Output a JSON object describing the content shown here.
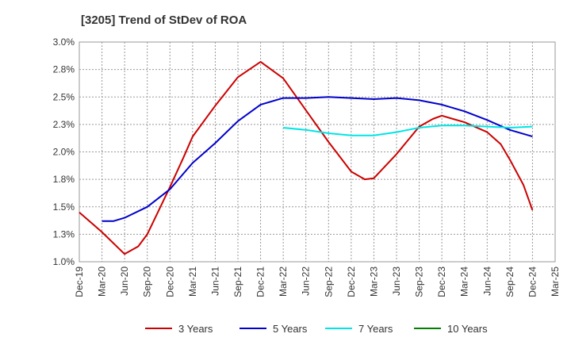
{
  "chart_data": {
    "type": "line",
    "title": "[3205]  Trend of StDev of ROA",
    "xlabel": "",
    "ylabel": "",
    "ylim": [
      1.0,
      3.0
    ],
    "y_ticks": [
      "1.0%",
      "1.3%",
      "1.5%",
      "1.8%",
      "2.0%",
      "2.3%",
      "2.5%",
      "2.8%",
      "3.0%"
    ],
    "y_tick_values": [
      1.0,
      1.25,
      1.5,
      1.75,
      2.0,
      2.25,
      2.5,
      2.75,
      3.0
    ],
    "x_ticks": [
      "Dec-19",
      "Mar-20",
      "Jun-20",
      "Sep-20",
      "Dec-20",
      "Mar-21",
      "Jun-21",
      "Sep-21",
      "Dec-21",
      "Mar-22",
      "Jun-22",
      "Sep-22",
      "Dec-22",
      "Mar-23",
      "Jun-23",
      "Sep-23",
      "Dec-23",
      "Mar-24",
      "Jun-24",
      "Sep-24",
      "Dec-24",
      "Mar-25"
    ],
    "grid": true,
    "legend_position": "bottom",
    "series": [
      {
        "name": "3 Years",
        "color": "#cc0000",
        "points": [
          [
            0,
            1.45
          ],
          [
            1,
            1.27
          ],
          [
            2,
            1.07
          ],
          [
            2.6,
            1.14
          ],
          [
            3,
            1.25
          ],
          [
            4,
            1.68
          ],
          [
            4.6,
            1.95
          ],
          [
            5,
            2.14
          ],
          [
            6,
            2.42
          ],
          [
            7,
            2.68
          ],
          [
            8,
            2.82
          ],
          [
            9,
            2.67
          ],
          [
            10,
            2.38
          ],
          [
            11,
            2.09
          ],
          [
            12,
            1.82
          ],
          [
            12.6,
            1.75
          ],
          [
            13,
            1.76
          ],
          [
            14,
            1.98
          ],
          [
            15,
            2.23
          ],
          [
            15.6,
            2.3
          ],
          [
            16,
            2.33
          ],
          [
            16.5,
            2.3
          ],
          [
            17,
            2.27
          ],
          [
            18,
            2.18
          ],
          [
            18.6,
            2.07
          ],
          [
            19,
            1.93
          ],
          [
            19.6,
            1.7
          ],
          [
            20,
            1.47
          ]
        ]
      },
      {
        "name": "5 Years",
        "color": "#0000cc",
        "points": [
          [
            1,
            1.37
          ],
          [
            1.5,
            1.37
          ],
          [
            2,
            1.4
          ],
          [
            3,
            1.5
          ],
          [
            4,
            1.66
          ],
          [
            5,
            1.9
          ],
          [
            6,
            2.08
          ],
          [
            7,
            2.28
          ],
          [
            8,
            2.43
          ],
          [
            9,
            2.49
          ],
          [
            10,
            2.49
          ],
          [
            11,
            2.5
          ],
          [
            12,
            2.49
          ],
          [
            13,
            2.48
          ],
          [
            14,
            2.49
          ],
          [
            15,
            2.47
          ],
          [
            16,
            2.43
          ],
          [
            17,
            2.37
          ],
          [
            18,
            2.29
          ],
          [
            19,
            2.2
          ],
          [
            20,
            2.14
          ]
        ]
      },
      {
        "name": "7 Years",
        "color": "#00e5e5",
        "points": [
          [
            9,
            2.22
          ],
          [
            10,
            2.2
          ],
          [
            11,
            2.17
          ],
          [
            12,
            2.15
          ],
          [
            13,
            2.15
          ],
          [
            14,
            2.18
          ],
          [
            15,
            2.22
          ],
          [
            16,
            2.24
          ],
          [
            17,
            2.24
          ],
          [
            18,
            2.23
          ],
          [
            19,
            2.22
          ],
          [
            20,
            2.23
          ]
        ]
      },
      {
        "name": "10 Years",
        "color": "#008000",
        "points": []
      }
    ]
  }
}
